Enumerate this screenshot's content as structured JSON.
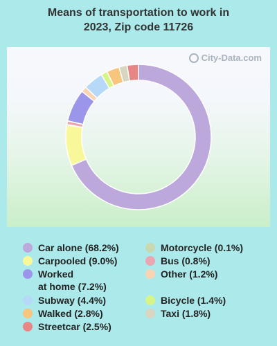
{
  "title_line1": "Means of transportation to work in",
  "title_line2": "2023, Zip code 11726",
  "watermark": "City-Data.com",
  "chart_data": {
    "type": "pie",
    "title": "Means of transportation to work in 2023, Zip code 11726",
    "slices": [
      {
        "label": "Car alone",
        "value": 68.2,
        "color": "#bda8db"
      },
      {
        "label": "Carpooled",
        "value": 9.0,
        "color": "#f8f89a"
      },
      {
        "label": "Motorcycle",
        "value": 0.1,
        "color": "#c8d8b0"
      },
      {
        "label": "Bus",
        "value": 0.8,
        "color": "#e9a6b0"
      },
      {
        "label": "Worked at home",
        "value": 7.2,
        "color": "#9b96ea"
      },
      {
        "label": "Other",
        "value": 1.2,
        "color": "#f9d3b2"
      },
      {
        "label": "Subway",
        "value": 4.4,
        "color": "#b7d9f8"
      },
      {
        "label": "Bicycle",
        "value": 1.4,
        "color": "#d7f587"
      },
      {
        "label": "Walked",
        "value": 2.8,
        "color": "#f7c57d"
      },
      {
        "label": "Taxi",
        "value": 1.8,
        "color": "#d8d6c0"
      },
      {
        "label": "Streetcar",
        "value": 2.5,
        "color": "#e88585"
      }
    ]
  },
  "legend": [
    {
      "text": "Car alone (68.2%)",
      "color": "#bda8db"
    },
    {
      "text": "Carpooled (9.0%)",
      "color": "#f8f89a"
    },
    {
      "text": "Worked\nat home (7.2%)",
      "color": "#9b96ea"
    },
    {
      "text": "Subway (4.4%)",
      "color": "#b7d9f8"
    },
    {
      "text": "Walked (2.8%)",
      "color": "#f7c57d"
    },
    {
      "text": "Streetcar (2.5%)",
      "color": "#e88585"
    },
    {
      "text": "Motorcycle (0.1%)",
      "color": "#c8d8b0"
    },
    {
      "text": "Bus (0.8%)",
      "color": "#e9a6b0"
    },
    {
      "text": "Other (1.2%)",
      "color": "#f9d3b2"
    },
    {
      "text": "Bicycle (1.4%)",
      "color": "#d7f587"
    },
    {
      "text": "Taxi (1.8%)",
      "color": "#d8d6c0"
    }
  ]
}
